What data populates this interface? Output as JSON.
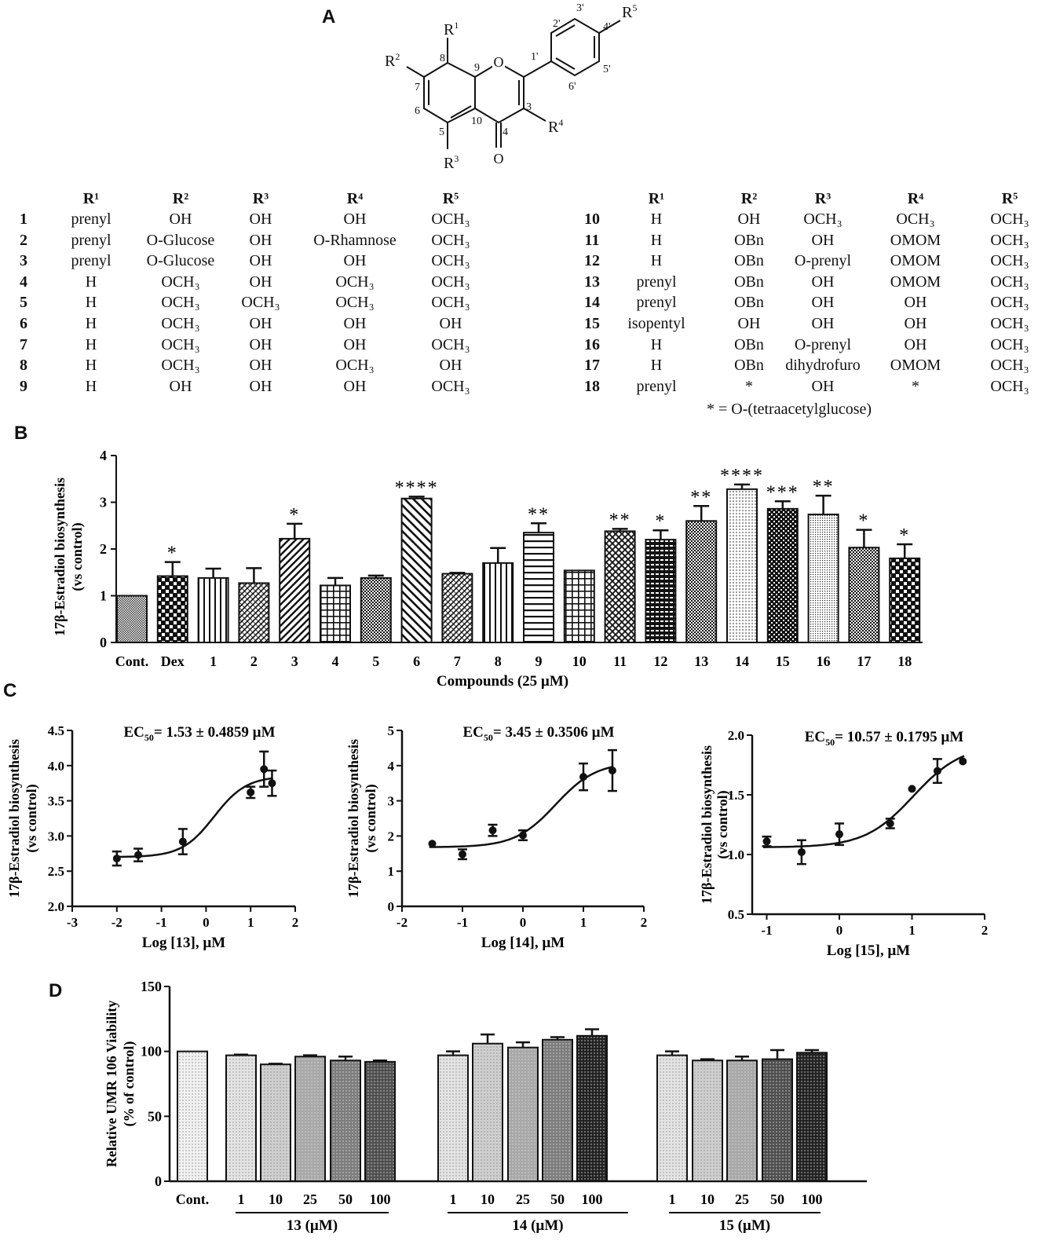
{
  "panel_labels": {
    "a": "A",
    "b": "B",
    "c": "C",
    "d": "D"
  },
  "structure": {
    "atoms": {
      "O1": "O",
      "O4": "O",
      "R1": "R",
      "R1s": "1",
      "R2": "R",
      "R2s": "2",
      "R3": "R",
      "R3s": "3",
      "R4": "R",
      "R4s": "4",
      "R5": "R",
      "R5s": "5"
    },
    "positions": [
      "8",
      "7",
      "6",
      "5",
      "10",
      "9",
      "4",
      "3",
      "2'",
      "3'",
      "4'",
      "5'",
      "6'",
      "1'"
    ]
  },
  "table_left": {
    "headers": [
      "R¹",
      "R²",
      "R³",
      "R⁴",
      "R⁵"
    ],
    "rows": [
      {
        "id": "1",
        "c": [
          "prenyl",
          "OH",
          "OH",
          "OH",
          "OCH₃"
        ]
      },
      {
        "id": "2",
        "c": [
          "prenyl",
          "O-Glucose",
          "OH",
          "O-Rhamnose",
          "OCH₃"
        ]
      },
      {
        "id": "3",
        "c": [
          "prenyl",
          "O-Glucose",
          "OH",
          "OH",
          "OCH₃"
        ]
      },
      {
        "id": "4",
        "c": [
          "H",
          "OCH₃",
          "OH",
          "OCH₃",
          "OCH₃"
        ]
      },
      {
        "id": "5",
        "c": [
          "H",
          "OCH₃",
          "OCH₃",
          "OCH₃",
          "OCH₃"
        ]
      },
      {
        "id": "6",
        "c": [
          "H",
          "OCH₃",
          "OH",
          "OH",
          "OH"
        ]
      },
      {
        "id": "7",
        "c": [
          "H",
          "OCH₃",
          "OH",
          "OH",
          "OCH₃"
        ]
      },
      {
        "id": "8",
        "c": [
          "H",
          "OCH₃",
          "OH",
          "OCH₃",
          "OH"
        ]
      },
      {
        "id": "9",
        "c": [
          "H",
          "OH",
          "OH",
          "OH",
          "OCH₃"
        ]
      }
    ]
  },
  "table_right": {
    "headers": [
      "R¹",
      "R²",
      "R³",
      "R⁴",
      "R⁵"
    ],
    "rows": [
      {
        "id": "10",
        "c": [
          "H",
          "OH",
          "OCH₃",
          "OCH₃",
          "OCH₃"
        ]
      },
      {
        "id": "11",
        "c": [
          "H",
          "OBn",
          "OH",
          "OMOM",
          "OCH₃"
        ]
      },
      {
        "id": "12",
        "c": [
          "H",
          "OBn",
          "O-prenyl",
          "OMOM",
          "OCH₃"
        ]
      },
      {
        "id": "13",
        "c": [
          "prenyl",
          "OBn",
          "OH",
          "OMOM",
          "OCH₃"
        ]
      },
      {
        "id": "14",
        "c": [
          "prenyl",
          "OBn",
          "OH",
          "OH",
          "OCH₃"
        ]
      },
      {
        "id": "15",
        "c": [
          "isopentyl",
          "OH",
          "OH",
          "OH",
          "OCH₃"
        ]
      },
      {
        "id": "16",
        "c": [
          "H",
          "OBn",
          "O-prenyl",
          "OH",
          "OCH₃"
        ]
      },
      {
        "id": "17",
        "c": [
          "H",
          "OBn",
          "dihydrofuro",
          "OMOM",
          "OCH₃"
        ]
      },
      {
        "id": "18",
        "c": [
          "prenyl",
          "*",
          "OH",
          "*",
          "OCH₃"
        ]
      }
    ],
    "footnote": "* = O-(tetraacetylglucose)"
  },
  "chart_data": [
    {
      "panel": "B",
      "type": "bar",
      "xlabel": "Compounds (25 µM)",
      "ylabel": "17β-Estradiol biosynthesis (vs control)",
      "ylim": [
        0,
        4
      ],
      "yticks": [
        "0",
        "1",
        "2",
        "3",
        "4"
      ],
      "categories": [
        "Cont.",
        "Dex",
        "1",
        "2",
        "3",
        "4",
        "5",
        "6",
        "7",
        "8",
        "9",
        "10",
        "11",
        "12",
        "13",
        "14",
        "15",
        "16",
        "17",
        "18"
      ],
      "values": [
        1.0,
        1.42,
        1.38,
        1.27,
        2.22,
        1.22,
        1.38,
        3.08,
        1.47,
        1.7,
        2.35,
        1.54,
        2.38,
        2.2,
        2.6,
        3.28,
        2.86,
        2.74,
        2.03,
        1.8
      ],
      "errors": [
        0,
        0.3,
        0.2,
        0.32,
        0.32,
        0.16,
        0.05,
        0.04,
        0.02,
        0.32,
        0.2,
        0,
        0.05,
        0.2,
        0.32,
        0.1,
        0.16,
        0.4,
        0.38,
        0.3
      ],
      "significance": [
        "",
        "*",
        "",
        "",
        "*",
        "",
        "",
        "****",
        "",
        "",
        "**",
        "",
        "**",
        "*",
        "**",
        "****",
        "***",
        "**",
        "*",
        "*"
      ]
    },
    {
      "panel": "C1",
      "type": "scatter",
      "title": "EC",
      "title_sub": "50",
      "title_value": "= 1.53 ± 0.4859 µM",
      "xlabel": "Log [13], µM",
      "ylabel": "17β-Estradiol biosynthesis (vs control)",
      "xlim": [
        -3,
        2
      ],
      "ylim": [
        2.0,
        4.5
      ],
      "xticks": [
        "-3",
        "-2",
        "-1",
        "0",
        "1",
        "2"
      ],
      "yticks": [
        "2.0",
        "2.5",
        "3.0",
        "3.5",
        "4.0",
        "4.5"
      ],
      "x": [
        -2.0,
        -1.52,
        -0.52,
        1.0,
        1.3,
        1.48
      ],
      "y": [
        2.68,
        2.73,
        2.92,
        3.62,
        3.95,
        3.75
      ],
      "errors": [
        0.1,
        0.09,
        0.18,
        0.08,
        0.25,
        0.18
      ],
      "curve": {
        "bottom": 2.7,
        "top": 3.85,
        "logec50": 0.18,
        "hill": 1.2
      }
    },
    {
      "panel": "C2",
      "type": "scatter",
      "title": "EC",
      "title_sub": "50",
      "title_value": "= 3.45 ± 0.3506 µM",
      "xlabel": "Log [14], µM",
      "ylabel": "17β-Estradiol biosynthesis (vs control)",
      "xlim": [
        -2,
        2
      ],
      "ylim": [
        0,
        5
      ],
      "xticks": [
        "-2",
        "-1",
        "0",
        "1",
        "2"
      ],
      "yticks": [
        "0",
        "1",
        "2",
        "3",
        "4",
        "5"
      ],
      "x": [
        -1.5,
        -1.0,
        -0.5,
        0.0,
        1.0,
        1.48
      ],
      "y": [
        1.78,
        1.48,
        2.16,
        2.02,
        3.68,
        3.86
      ],
      "errors": [
        0,
        0.14,
        0.16,
        0.14,
        0.38,
        0.58
      ],
      "curve": {
        "bottom": 1.68,
        "top": 4.1,
        "logec50": 0.54,
        "hill": 1.3
      }
    },
    {
      "panel": "C3",
      "type": "scatter",
      "title": "EC",
      "title_sub": "50",
      "title_value": "= 10.57 ± 0.1795 µM",
      "xlabel": "Log [15], µM",
      "ylabel": "17β-Estradiol biosynthesis (vs control)",
      "xlim": [
        -1.2,
        2
      ],
      "ylim": [
        0.5,
        2.0
      ],
      "xticks": [
        "-1",
        "0",
        "1",
        "2"
      ],
      "yticks": [
        "0.5",
        "1.0",
        "1.5",
        "2.0"
      ],
      "x": [
        -1.0,
        -0.52,
        0.0,
        0.7,
        1.0,
        1.35,
        1.7
      ],
      "y": [
        1.11,
        1.02,
        1.17,
        1.26,
        1.55,
        1.7,
        1.78
      ],
      "errors": [
        0.04,
        0.1,
        0.09,
        0.04,
        0,
        0.1,
        0
      ],
      "curve": {
        "bottom": 1.06,
        "top": 1.92,
        "logec50": 1.02,
        "hill": 1.3
      }
    },
    {
      "panel": "D",
      "type": "bar",
      "ylabel": "Relative UMR 106 Viability (% of control)",
      "ylim": [
        0,
        150
      ],
      "yticks": [
        "0",
        "50",
        "100",
        "150"
      ],
      "categories": [
        "Cont.",
        "1",
        "10",
        "25",
        "50",
        "100",
        "1",
        "10",
        "25",
        "50",
        "100",
        "1",
        "10",
        "25",
        "50",
        "100"
      ],
      "values": [
        100,
        97,
        90,
        96,
        93,
        92,
        97,
        106,
        103,
        109,
        112,
        97,
        93,
        93,
        94,
        99
      ],
      "errors": [
        0,
        0.5,
        0.5,
        1,
        3,
        1,
        3,
        7,
        4,
        2,
        5,
        3,
        1,
        3,
        7,
        2
      ],
      "groups": [
        "13 (µM)",
        "14 (µM)",
        "15 (µM)"
      ]
    }
  ]
}
